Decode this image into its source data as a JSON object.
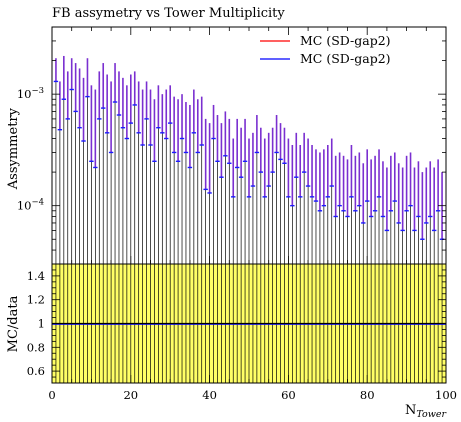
{
  "chart_data": [
    {
      "type": "scatter",
      "title": "FB assymetry vs Tower Multiplicity",
      "ylabel": "Assymmetry",
      "xlabel": "N_Tower",
      "xlabel_main": "N",
      "xlabel_sub": "Tower",
      "xlim": [
        0,
        100
      ],
      "ylim": [
        3e-05,
        0.004
      ],
      "yscale": "log",
      "y_ticks": [
        {
          "value": 0.0001,
          "base": "10",
          "exp": "−4"
        },
        {
          "value": 0.001,
          "base": "10",
          "exp": "−3"
        }
      ],
      "grid": false,
      "legend_position": "top-right",
      "series": [
        {
          "name": "MC (SD-gap2)",
          "color": "#ff0000",
          "x": [
            1,
            2,
            3,
            4,
            5,
            6,
            7,
            8,
            9,
            10,
            11,
            12,
            13,
            14,
            15,
            16,
            17,
            18,
            19,
            20,
            21,
            22,
            23,
            24,
            25,
            26,
            27,
            28,
            29,
            30,
            31,
            32,
            33,
            34,
            35,
            36,
            37,
            38,
            39,
            40,
            41,
            42,
            43,
            44,
            45,
            46,
            47,
            48,
            49,
            50,
            51,
            52,
            53,
            54,
            55,
            56,
            57,
            58,
            59,
            60,
            61,
            62,
            63,
            64,
            65,
            66,
            67,
            68,
            69,
            70,
            71,
            72,
            73,
            74,
            75,
            76,
            77,
            78,
            79,
            80,
            81,
            82,
            83,
            84,
            85,
            86,
            87,
            88,
            89,
            90,
            91,
            92,
            93,
            94,
            95,
            96,
            97,
            98,
            99
          ],
          "y": [
            0.0013,
            0.00048,
            0.0009,
            0.0006,
            0.0011,
            0.0007,
            0.0005,
            0.00038,
            0.00095,
            0.00025,
            0.00022,
            0.0006,
            0.00075,
            0.00045,
            0.0003,
            0.00085,
            0.00065,
            0.0005,
            0.0004,
            0.00055,
            0.0008,
            0.00045,
            0.00035,
            0.0006,
            0.00035,
            0.00025,
            0.0005,
            0.00045,
            0.0004,
            0.00055,
            0.0003,
            0.00025,
            0.0004,
            0.0003,
            0.00022,
            0.00045,
            0.0003,
            0.00035,
            0.00014,
            0.00013,
            0.0004,
            0.00025,
            0.00018,
            0.00028,
            0.00024,
            0.00012,
            0.00022,
            0.00018,
            0.00025,
            0.00012,
            0.00015,
            0.0003,
            0.0002,
            0.00012,
            0.00015,
            0.0002,
            0.0003,
            0.00026,
            0.00024,
            0.00012,
            0.0001,
            0.00018,
            0.00012,
            0.0002,
            0.00015,
            0.00012,
            0.00011,
            9e-05,
            0.0001,
            0.00012,
            0.00015,
            8e-05,
            0.0001,
            9e-05,
            8e-05,
            0.00012,
            9e-05,
            0.0001,
            7e-05,
            0.00011,
            8e-05,
            9e-05,
            0.00012,
            8e-05,
            6e-05,
            9e-05,
            0.00011,
            7e-05,
            6e-05,
            9e-05,
            0.0001,
            6e-05,
            8e-05,
            5e-05,
            7e-05,
            8e-05,
            6e-05,
            9e-05,
            5e-05
          ],
          "y_low": [
            4e-05,
            4e-05,
            4e-05,
            4e-05,
            4e-05,
            4e-05,
            4e-05,
            4e-05,
            4e-05,
            4e-05,
            4e-05,
            4e-05,
            4e-05,
            4e-05,
            4e-05,
            4e-05,
            4e-05,
            4e-05,
            4e-05,
            4e-05,
            4e-05,
            4e-05,
            4e-05,
            4e-05,
            4e-05,
            4e-05,
            4e-05,
            4e-05,
            4e-05,
            4e-05,
            4e-05,
            4e-05,
            4e-05,
            4e-05,
            4e-05,
            4e-05,
            4e-05,
            4e-05,
            4e-05,
            4e-05,
            4e-05,
            4e-05,
            4e-05,
            4e-05,
            4e-05,
            4e-05,
            4e-05,
            4e-05,
            4e-05,
            4e-05,
            4e-05,
            4e-05,
            4e-05,
            4e-05,
            4e-05,
            4e-05,
            4e-05,
            4e-05,
            4e-05,
            4e-05,
            4e-05,
            4e-05,
            4e-05,
            4e-05,
            4e-05,
            4e-05,
            4e-05,
            4e-05,
            4e-05,
            4e-05,
            4e-05,
            4e-05,
            4e-05,
            4e-05,
            4e-05,
            4e-05,
            4e-05,
            4e-05,
            4e-05,
            4e-05,
            4e-05,
            4e-05,
            4e-05,
            4e-05,
            4e-05,
            4e-05,
            4e-05,
            4e-05,
            4e-05,
            4e-05,
            4e-05,
            4e-05,
            4e-05,
            4e-05,
            4e-05,
            4e-05,
            4e-05,
            4e-05,
            4e-05
          ],
          "y_high": [
            0.0021,
            0.0013,
            0.0022,
            0.0016,
            0.0021,
            0.0019,
            0.0017,
            0.0014,
            0.0021,
            0.0012,
            0.0011,
            0.0016,
            0.0019,
            0.0015,
            0.0013,
            0.0019,
            0.0016,
            0.0014,
            0.0012,
            0.0015,
            0.0016,
            0.0013,
            0.0011,
            0.0013,
            0.0011,
            0.0009,
            0.0012,
            0.001,
            0.0011,
            0.0012,
            0.00095,
            0.0009,
            0.001,
            0.00085,
            0.0008,
            0.0011,
            0.0009,
            0.00095,
            0.0006,
            0.00055,
            0.0008,
            0.00065,
            0.00055,
            0.0007,
            0.0006,
            0.0004,
            0.0006,
            0.0005,
            0.0006,
            0.0004,
            0.00045,
            0.00065,
            0.0005,
            0.0004,
            0.00045,
            0.0005,
            0.00065,
            0.00055,
            0.0005,
            0.0004,
            0.00035,
            0.00045,
            0.00035,
            0.00045,
            0.0004,
            0.00035,
            0.00032,
            0.0003,
            0.00032,
            0.00035,
            0.0004,
            0.00028,
            0.0003,
            0.00028,
            0.00026,
            0.00035,
            0.00028,
            0.0003,
            0.00024,
            0.00032,
            0.00026,
            0.00028,
            0.00032,
            0.00025,
            0.00022,
            0.00028,
            0.0003,
            0.00024,
            0.00022,
            0.00028,
            0.0003,
            0.00022,
            0.00025,
            0.0002,
            0.00022,
            0.00025,
            0.00022,
            0.00026,
            0.0002
          ]
        },
        {
          "name": "MC (SD-gap2)",
          "color": "#0000ff",
          "x": [
            1,
            2,
            3,
            4,
            5,
            6,
            7,
            8,
            9,
            10,
            11,
            12,
            13,
            14,
            15,
            16,
            17,
            18,
            19,
            20,
            21,
            22,
            23,
            24,
            25,
            26,
            27,
            28,
            29,
            30,
            31,
            32,
            33,
            34,
            35,
            36,
            37,
            38,
            39,
            40,
            41,
            42,
            43,
            44,
            45,
            46,
            47,
            48,
            49,
            50,
            51,
            52,
            53,
            54,
            55,
            56,
            57,
            58,
            59,
            60,
            61,
            62,
            63,
            64,
            65,
            66,
            67,
            68,
            69,
            70,
            71,
            72,
            73,
            74,
            75,
            76,
            77,
            78,
            79,
            80,
            81,
            82,
            83,
            84,
            85,
            86,
            87,
            88,
            89,
            90,
            91,
            92,
            93,
            94,
            95,
            96,
            97,
            98,
            99
          ],
          "y": [
            0.0013,
            0.00048,
            0.0009,
            0.0006,
            0.0011,
            0.0007,
            0.0005,
            0.00038,
            0.00095,
            0.00025,
            0.00022,
            0.0006,
            0.00075,
            0.00045,
            0.0003,
            0.00085,
            0.00065,
            0.0005,
            0.0004,
            0.00055,
            0.0008,
            0.00045,
            0.00035,
            0.0006,
            0.00035,
            0.00025,
            0.0005,
            0.00045,
            0.0004,
            0.00055,
            0.0003,
            0.00025,
            0.0004,
            0.0003,
            0.00022,
            0.00045,
            0.0003,
            0.00035,
            0.00014,
            0.00013,
            0.0004,
            0.00025,
            0.00018,
            0.00028,
            0.00024,
            0.00012,
            0.00022,
            0.00018,
            0.00025,
            0.00012,
            0.00015,
            0.0003,
            0.0002,
            0.00012,
            0.00015,
            0.0002,
            0.0003,
            0.00026,
            0.00024,
            0.00012,
            0.0001,
            0.00018,
            0.00012,
            0.0002,
            0.00015,
            0.00012,
            0.00011,
            9e-05,
            0.0001,
            0.00012,
            0.00015,
            8e-05,
            0.0001,
            9e-05,
            8e-05,
            0.00012,
            9e-05,
            0.0001,
            7e-05,
            0.00011,
            8e-05,
            9e-05,
            0.00012,
            8e-05,
            6e-05,
            9e-05,
            0.00011,
            7e-05,
            6e-05,
            9e-05,
            0.0001,
            6e-05,
            8e-05,
            5e-05,
            7e-05,
            8e-05,
            6e-05,
            9e-05,
            5e-05
          ],
          "y_low": [
            4e-05,
            4e-05,
            4e-05,
            4e-05,
            4e-05,
            4e-05,
            4e-05,
            4e-05,
            4e-05,
            4e-05,
            4e-05,
            4e-05,
            4e-05,
            4e-05,
            4e-05,
            4e-05,
            4e-05,
            4e-05,
            4e-05,
            4e-05,
            4e-05,
            4e-05,
            4e-05,
            4e-05,
            4e-05,
            4e-05,
            4e-05,
            4e-05,
            4e-05,
            4e-05,
            4e-05,
            4e-05,
            4e-05,
            4e-05,
            4e-05,
            4e-05,
            4e-05,
            4e-05,
            4e-05,
            4e-05,
            4e-05,
            4e-05,
            4e-05,
            4e-05,
            4e-05,
            4e-05,
            4e-05,
            4e-05,
            4e-05,
            4e-05,
            4e-05,
            4e-05,
            4e-05,
            4e-05,
            4e-05,
            4e-05,
            4e-05,
            4e-05,
            4e-05,
            4e-05,
            4e-05,
            4e-05,
            4e-05,
            4e-05,
            4e-05,
            4e-05,
            4e-05,
            4e-05,
            4e-05,
            4e-05,
            4e-05,
            4e-05,
            4e-05,
            4e-05,
            4e-05,
            4e-05,
            4e-05,
            4e-05,
            4e-05,
            4e-05,
            4e-05,
            4e-05,
            4e-05,
            4e-05,
            4e-05,
            4e-05,
            4e-05,
            4e-05,
            4e-05,
            4e-05,
            4e-05,
            4e-05,
            4e-05,
            4e-05,
            4e-05,
            4e-05,
            4e-05,
            4e-05,
            4e-05
          ],
          "y_high": [
            0.0021,
            0.0013,
            0.0022,
            0.0016,
            0.0021,
            0.0019,
            0.0017,
            0.0014,
            0.0021,
            0.0012,
            0.0011,
            0.0016,
            0.0019,
            0.0015,
            0.0013,
            0.0019,
            0.0016,
            0.0014,
            0.0012,
            0.0015,
            0.0016,
            0.0013,
            0.0011,
            0.0013,
            0.0011,
            0.0009,
            0.0012,
            0.001,
            0.0011,
            0.0012,
            0.00095,
            0.0009,
            0.001,
            0.00085,
            0.0008,
            0.0011,
            0.0009,
            0.00095,
            0.0006,
            0.00055,
            0.0008,
            0.00065,
            0.00055,
            0.0007,
            0.0006,
            0.0004,
            0.0006,
            0.0005,
            0.0006,
            0.0004,
            0.00045,
            0.00065,
            0.0005,
            0.0004,
            0.00045,
            0.0005,
            0.00065,
            0.00055,
            0.0005,
            0.0004,
            0.00035,
            0.00045,
            0.00035,
            0.00045,
            0.0004,
            0.00035,
            0.00032,
            0.0003,
            0.00032,
            0.00035,
            0.0004,
            0.00028,
            0.0003,
            0.00028,
            0.00026,
            0.00035,
            0.00028,
            0.0003,
            0.00024,
            0.00032,
            0.00026,
            0.00028,
            0.00032,
            0.00025,
            0.00022,
            0.00028,
            0.0003,
            0.00024,
            0.00022,
            0.00028,
            0.0003,
            0.00022,
            0.00025,
            0.0002,
            0.00022,
            0.00025,
            0.00022,
            0.00026,
            0.0002
          ]
        }
      ]
    },
    {
      "type": "scatter",
      "ylabel": "MC/data",
      "xlabel": "N_Tower",
      "xlim": [
        0,
        100
      ],
      "ylim": [
        0.5,
        1.5
      ],
      "y_ticks": [
        0.6,
        0.8,
        1,
        1.2,
        1.4
      ],
      "y_tick_labels": [
        "0.6",
        "0.8",
        "1",
        "1.2",
        "1.4"
      ],
      "x_ticks": [
        0,
        20,
        40,
        60,
        80,
        100
      ],
      "x_tick_labels": [
        "0",
        "20",
        "40",
        "60",
        "80",
        "100"
      ],
      "band": {
        "color": "#ffff66",
        "from": 0.5,
        "to": 1.5
      },
      "reference_line": 1,
      "grid": false,
      "series": [
        {
          "name": "MC (SD-gap2)",
          "color": "#0000ff",
          "x": [
            1,
            2,
            3,
            4,
            5,
            6,
            7,
            8,
            9,
            10,
            11,
            12,
            13,
            14,
            15,
            16,
            17,
            18,
            19,
            20,
            21,
            22,
            23,
            24,
            25,
            26,
            27,
            28,
            29,
            30,
            31,
            32,
            33,
            34,
            35,
            36,
            37,
            38,
            39,
            40,
            41,
            42,
            43,
            44,
            45,
            46,
            47,
            48,
            49,
            50,
            51,
            52,
            53,
            54,
            55,
            56,
            57,
            58,
            59,
            60,
            61,
            62,
            63,
            64,
            65,
            66,
            67,
            68,
            69,
            70,
            71,
            72,
            73,
            74,
            75,
            76,
            77,
            78,
            79,
            80,
            81,
            82,
            83,
            84,
            85,
            86,
            87,
            88,
            89,
            90,
            91,
            92,
            93,
            94,
            95,
            96,
            97,
            98,
            99
          ],
          "y": [
            1,
            1,
            1,
            1,
            1,
            1,
            1,
            1,
            1,
            1,
            1,
            1,
            1,
            1,
            1,
            1,
            1,
            1,
            1,
            1,
            1,
            1,
            1,
            1,
            1,
            1,
            1,
            1,
            1,
            1,
            1,
            1,
            1,
            1,
            1,
            1,
            1,
            1,
            1,
            1,
            1,
            1,
            1,
            1,
            1,
            1,
            1,
            1,
            1,
            1,
            1,
            1,
            1,
            1,
            1,
            1,
            1,
            1,
            1,
            1,
            1,
            1,
            1,
            1,
            1,
            1,
            1,
            1,
            1,
            1,
            1,
            1,
            1,
            1,
            1,
            1,
            1,
            1,
            1,
            1,
            1,
            1,
            1,
            1,
            1,
            1,
            1,
            1,
            1,
            1,
            1,
            1,
            1,
            1,
            1,
            1,
            1,
            1,
            1
          ]
        }
      ]
    }
  ]
}
